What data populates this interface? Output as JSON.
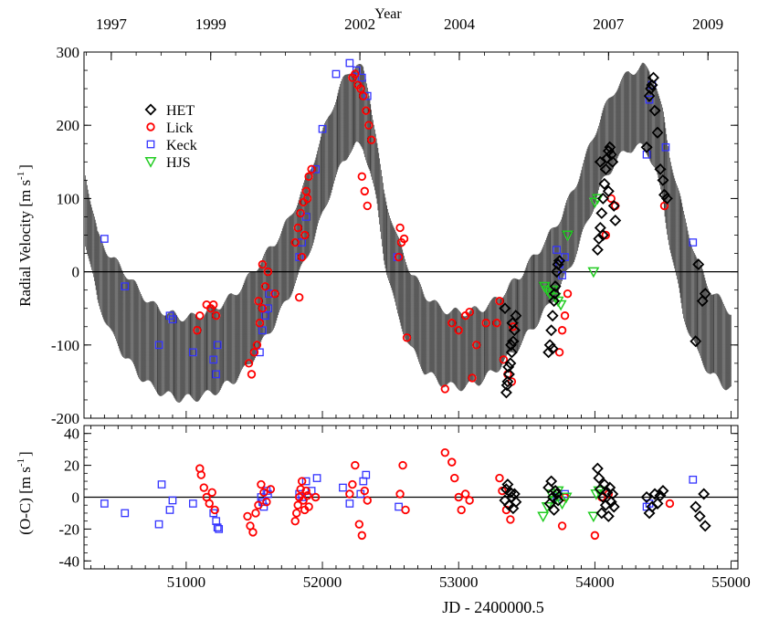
{
  "chart_data": [
    {
      "type": "scatter",
      "panel": "radial-velocity",
      "title": "",
      "top_axis": {
        "label": "Year",
        "ticks": [
          {
            "label": "1997",
            "jd": 50450
          },
          {
            "label": "1999",
            "jd": 51180
          },
          {
            "label": "2002",
            "jd": 52275
          },
          {
            "label": "2004",
            "jd": 53005
          },
          {
            "label": "2007",
            "jd": 54100
          },
          {
            "label": "2009",
            "jd": 54830
          }
        ]
      },
      "xlabel": "JD - 2400000.5",
      "ylabel_main": "Radial Velocity [m s",
      "ylabel_sup": "-1",
      "ylabel_end": "]",
      "xlim": [
        50250,
        55050
      ],
      "ylim": [
        -200,
        300
      ],
      "xticks": [
        51000,
        52000,
        53000,
        54000,
        55000
      ],
      "xtick_labels": [
        "51000",
        "52000",
        "53000",
        "54000",
        "55000"
      ],
      "yticks": [
        -200,
        -100,
        0,
        100,
        200,
        300
      ],
      "ytick_labels": [
        "-200",
        "-100",
        "0",
        "100",
        "200",
        "300"
      ],
      "zero_line": true,
      "legend": {
        "placement": "top-left",
        "entries": [
          {
            "name": "HET",
            "marker": "diamond",
            "color": "#000000"
          },
          {
            "name": "Lick",
            "marker": "circle",
            "color": "#ff0000"
          },
          {
            "name": "Keck",
            "marker": "square",
            "color": "#3333ff"
          },
          {
            "name": "HJS",
            "marker": "triangle-down",
            "color": "#22cc22"
          }
        ]
      },
      "envelope": {
        "name": "Keplerian orbit fit band (oscillating model)",
        "color": "#000000",
        "x": [
          50260,
          50350,
          50450,
          50550,
          50650,
          50750,
          50850,
          50950,
          51050,
          51150,
          51250,
          51350,
          51450,
          51550,
          51650,
          51750,
          51850,
          51950,
          52050,
          52150,
          52200,
          52250,
          52300,
          52350,
          52400,
          52450,
          52550,
          52650,
          52750,
          52850,
          52950,
          53050,
          53150,
          53250,
          53350,
          53450,
          53550,
          53650,
          53750,
          53850,
          53950,
          54050,
          54150,
          54250,
          54350,
          54400,
          54450,
          54500,
          54550,
          54650,
          54750,
          54850,
          54950,
          55000
        ],
        "upper": [
          135,
          50,
          20,
          0,
          -25,
          -45,
          -55,
          -62,
          -62,
          -55,
          -45,
          -32,
          -10,
          15,
          40,
          70,
          110,
          160,
          215,
          260,
          275,
          282,
          275,
          240,
          175,
          110,
          45,
          0,
          -30,
          -48,
          -55,
          -55,
          -52,
          -42,
          -25,
          -5,
          20,
          45,
          75,
          115,
          165,
          215,
          250,
          272,
          280,
          275,
          255,
          215,
          160,
          80,
          15,
          -25,
          -45,
          -55
        ],
        "lower": [
          40,
          -40,
          -85,
          -115,
          -140,
          -158,
          -168,
          -173,
          -173,
          -168,
          -160,
          -148,
          -130,
          -100,
          -70,
          -35,
          5,
          50,
          105,
          150,
          165,
          172,
          168,
          140,
          90,
          20,
          -60,
          -105,
          -135,
          -150,
          -157,
          -157,
          -150,
          -138,
          -120,
          -100,
          -75,
          -50,
          -20,
          20,
          70,
          120,
          150,
          168,
          170,
          160,
          135,
          95,
          35,
          -60,
          -110,
          -140,
          -155,
          -160
        ]
      },
      "series": [
        {
          "name": "HET",
          "marker": "diamond",
          "color": "#000000",
          "x": [
            53350,
            53360,
            53370,
            53380,
            53390,
            53400,
            53410,
            53420,
            53340,
            53355,
            53365,
            53385,
            53395,
            53660,
            53670,
            53680,
            53690,
            53700,
            53710,
            53720,
            53730,
            53740,
            53690,
            53705,
            54020,
            54030,
            54040,
            54050,
            54060,
            54070,
            54080,
            54090,
            54100,
            54110,
            54120,
            54130,
            54140,
            54150,
            54060,
            54040,
            54100,
            54380,
            54400,
            54410,
            54420,
            54430,
            54440,
            54460,
            54480,
            54500,
            54510,
            54530,
            54740,
            54760,
            54790,
            54810
          ],
          "y": [
            -165,
            -150,
            -140,
            -125,
            -110,
            -95,
            -80,
            -60,
            -50,
            -155,
            -130,
            -100,
            -70,
            -110,
            -100,
            -80,
            -60,
            -40,
            -20,
            0,
            10,
            15,
            -105,
            -30,
            30,
            45,
            60,
            80,
            100,
            120,
            140,
            155,
            165,
            170,
            160,
            150,
            90,
            70,
            50,
            150,
            110,
            170,
            240,
            250,
            255,
            265,
            220,
            190,
            140,
            125,
            105,
            100,
            -95,
            10,
            -40,
            -30
          ]
        },
        {
          "name": "Lick",
          "marker": "circle",
          "color": "#ff0000",
          "x": [
            51100,
            51150,
            51180,
            51200,
            51220,
            51080,
            51460,
            51480,
            51500,
            51520,
            51540,
            51560,
            51580,
            51600,
            51650,
            51530,
            51560,
            51800,
            51820,
            51840,
            51860,
            51880,
            51900,
            51920,
            51830,
            51850,
            51870,
            51890,
            52220,
            52240,
            52260,
            52280,
            52300,
            52320,
            52340,
            52360,
            52290,
            52310,
            52330,
            52580,
            52600,
            52620,
            52560,
            52570,
            52900,
            52950,
            53000,
            53050,
            53080,
            53100,
            53130,
            53200,
            53280,
            53300,
            53330,
            53360,
            53390,
            53400,
            53740,
            53760,
            53780,
            53800,
            54080,
            54120,
            54150,
            54510
          ],
          "y": [
            -60,
            -45,
            -50,
            -45,
            -60,
            -80,
            -125,
            -140,
            -110,
            -100,
            -70,
            -50,
            -20,
            0,
            -30,
            -40,
            10,
            40,
            60,
            80,
            95,
            110,
            130,
            140,
            -35,
            20,
            50,
            100,
            265,
            270,
            255,
            250,
            240,
            220,
            200,
            180,
            130,
            110,
            90,
            40,
            45,
            -90,
            20,
            60,
            -160,
            -70,
            -80,
            -60,
            -55,
            -145,
            -100,
            -70,
            -70,
            -40,
            -120,
            -140,
            -150,
            -75,
            -110,
            -80,
            -60,
            -30,
            50,
            100,
            90,
            90
          ]
        },
        {
          "name": "Keck",
          "marker": "square",
          "color": "#3333ff",
          "x": [
            50400,
            50550,
            50800,
            50880,
            50900,
            51050,
            51200,
            51220,
            51230,
            51540,
            51560,
            51580,
            51600,
            51610,
            51830,
            51850,
            51880,
            51950,
            52000,
            52100,
            52200,
            52250,
            52290,
            52330,
            52550,
            53720,
            53740,
            53760,
            53780,
            54380,
            54400,
            54420,
            54520,
            54720
          ],
          "y": [
            45,
            -20,
            -100,
            -60,
            -65,
            -110,
            -120,
            -140,
            -100,
            -110,
            -80,
            -60,
            -50,
            -30,
            20,
            40,
            75,
            140,
            195,
            270,
            285,
            275,
            265,
            240,
            20,
            30,
            10,
            -5,
            20,
            160,
            235,
            255,
            170,
            40
          ]
        },
        {
          "name": "HJS",
          "marker": "triangle-down",
          "color": "#22cc22",
          "x": [
            53630,
            53650,
            53670,
            53690,
            53710,
            53730,
            53750,
            53800,
            53990,
            54000,
            54020
          ],
          "y": [
            -20,
            -25,
            -30,
            -25,
            -35,
            -40,
            -45,
            50,
            0,
            95,
            100
          ]
        }
      ]
    },
    {
      "type": "scatter",
      "panel": "residuals",
      "title": "",
      "xlabel": "JD - 2400000.5",
      "ylabel_main": "(O-C) [m s",
      "ylabel_sup": "-1",
      "ylabel_end": "]",
      "xlim": [
        50250,
        55050
      ],
      "ylim": [
        -45,
        45
      ],
      "yticks": [
        -40,
        -20,
        0,
        20,
        40
      ],
      "ytick_labels": [
        "-40",
        "-20",
        "0",
        "20",
        "40"
      ],
      "zero_line": true,
      "series": [
        {
          "name": "HET",
          "marker": "diamond",
          "color": "#000000",
          "x": [
            53340,
            53350,
            53360,
            53370,
            53380,
            53390,
            53400,
            53410,
            53420,
            53660,
            53670,
            53680,
            53690,
            53700,
            53710,
            53720,
            53730,
            54020,
            54030,
            54040,
            54050,
            54060,
            54070,
            54080,
            54090,
            54100,
            54110,
            54120,
            54130,
            54140,
            54380,
            54400,
            54420,
            54440,
            54460,
            54480,
            54500,
            54740,
            54770,
            54800,
            54810
          ],
          "y": [
            -2,
            5,
            8,
            -5,
            3,
            0,
            -7,
            2,
            -3,
            6,
            -4,
            10,
            0,
            -8,
            4,
            2,
            -2,
            18,
            12,
            5,
            -10,
            0,
            8,
            -5,
            3,
            -12,
            6,
            -3,
            2,
            -6,
            0,
            -10,
            -6,
            2,
            -4,
            1,
            4,
            -6,
            -12,
            2,
            -18
          ]
        },
        {
          "name": "Lick",
          "marker": "circle",
          "color": "#ff0000",
          "x": [
            51100,
            51110,
            51130,
            51150,
            51170,
            51190,
            51210,
            51450,
            51470,
            51490,
            51510,
            51530,
            51550,
            51570,
            51590,
            51620,
            51800,
            51810,
            51820,
            51830,
            51840,
            51850,
            51860,
            51870,
            51880,
            51890,
            51900,
            51950,
            52200,
            52220,
            52240,
            52270,
            52290,
            52310,
            52330,
            52570,
            52590,
            52610,
            52900,
            52950,
            52970,
            53000,
            53020,
            53050,
            53080,
            53300,
            53320,
            53350,
            53380,
            53760,
            53780,
            54000,
            54050,
            54100,
            54550
          ],
          "y": [
            18,
            14,
            6,
            0,
            -4,
            3,
            -8,
            -12,
            -18,
            -22,
            -10,
            -5,
            8,
            3,
            -3,
            5,
            -15,
            -10,
            -5,
            0,
            5,
            10,
            -2,
            -8,
            4,
            1,
            -6,
            0,
            2,
            8,
            20,
            -17,
            -24,
            4,
            -2,
            2,
            20,
            -8,
            28,
            22,
            12,
            0,
            -8,
            2,
            -2,
            12,
            4,
            -8,
            -14,
            -18,
            0,
            -24,
            0,
            2,
            -4
          ]
        },
        {
          "name": "Keck",
          "marker": "square",
          "color": "#3333ff",
          "x": [
            50400,
            50550,
            50800,
            50820,
            50880,
            50900,
            51050,
            51200,
            51220,
            51230,
            51240,
            51550,
            51560,
            51570,
            51590,
            51600,
            51830,
            51850,
            51880,
            51920,
            51960,
            52150,
            52200,
            52280,
            52300,
            52320,
            52560,
            53720,
            53780,
            54380,
            54400,
            54720
          ],
          "y": [
            -4,
            -10,
            -17,
            8,
            -8,
            -2,
            -4,
            -10,
            -15,
            -19,
            -20,
            0,
            -3,
            -6,
            4,
            2,
            2,
            0,
            10,
            4,
            12,
            6,
            -4,
            2,
            10,
            14,
            -6,
            0,
            2,
            -6,
            -4,
            11
          ]
        },
        {
          "name": "HJS",
          "marker": "triangle-down",
          "color": "#22cc22",
          "x": [
            53620,
            53650,
            53680,
            53700,
            53730,
            53760,
            53790,
            53990,
            54010,
            54030
          ],
          "y": [
            -12,
            -6,
            2,
            -2,
            4,
            -4,
            0,
            -12,
            2,
            4
          ]
        }
      ]
    }
  ]
}
